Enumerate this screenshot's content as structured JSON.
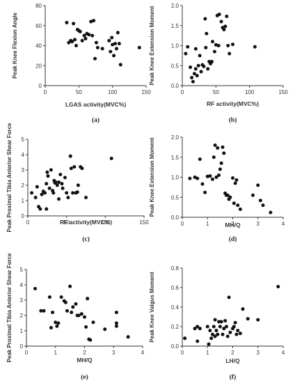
{
  "chart_data": [
    {
      "type": "scatter",
      "panel_label": "(a)",
      "xlabel": "LGAS activity(MVC%)",
      "ylabel": "Peak Knee Flexion Angle",
      "xlim": [
        0,
        150
      ],
      "ylim": [
        0,
        80
      ],
      "xticks": [
        0,
        50,
        100,
        150
      ],
      "yticks": [
        0,
        20,
        40,
        60,
        80
      ],
      "marker_color": "#111111",
      "points": [
        [
          32,
          63
        ],
        [
          35,
          43
        ],
        [
          38,
          45
        ],
        [
          40,
          44
        ],
        [
          42,
          62
        ],
        [
          44,
          46
        ],
        [
          46,
          40
        ],
        [
          48,
          56
        ],
        [
          50,
          55
        ],
        [
          52,
          54
        ],
        [
          55,
          45
        ],
        [
          58,
          50
        ],
        [
          60,
          47
        ],
        [
          62,
          52
        ],
        [
          65,
          51
        ],
        [
          68,
          64
        ],
        [
          70,
          50
        ],
        [
          72,
          65
        ],
        [
          74,
          27
        ],
        [
          76,
          43
        ],
        [
          78,
          38
        ],
        [
          85,
          37
        ],
        [
          95,
          45
        ],
        [
          97,
          34
        ],
        [
          99,
          48
        ],
        [
          100,
          41
        ],
        [
          102,
          30
        ],
        [
          104,
          42
        ],
        [
          106,
          37
        ],
        [
          108,
          53
        ],
        [
          110,
          42
        ],
        [
          112,
          21
        ],
        [
          140,
          38
        ]
      ]
    },
    {
      "type": "scatter",
      "panel_label": "(b)",
      "xlabel": "RF activity(MVC%)",
      "ylabel": "Peak Knee Extension Moment",
      "xlim": [
        0,
        150
      ],
      "ylim": [
        0,
        2.0
      ],
      "xticks": [
        0,
        50,
        100,
        150
      ],
      "yticks": [
        0.0,
        0.5,
        1.0,
        1.5,
        2.0
      ],
      "marker_color": "#111111",
      "points": [
        [
          5,
          0.8
        ],
        [
          8,
          0.97
        ],
        [
          12,
          0.46
        ],
        [
          14,
          0.2
        ],
        [
          16,
          0.1
        ],
        [
          18,
          0.3
        ],
        [
          20,
          0.42
        ],
        [
          20,
          0.92
        ],
        [
          22,
          0.25
        ],
        [
          24,
          0.5
        ],
        [
          26,
          0.75
        ],
        [
          28,
          0.35
        ],
        [
          30,
          0.52
        ],
        [
          32,
          0.48
        ],
        [
          34,
          1.67
        ],
        [
          35,
          0.95
        ],
        [
          36,
          1.3
        ],
        [
          38,
          0.42
        ],
        [
          40,
          0.6
        ],
        [
          42,
          0.55
        ],
        [
          44,
          0.6
        ],
        [
          45,
          1.1
        ],
        [
          48,
          0.85
        ],
        [
          50,
          1.02
        ],
        [
          52,
          1.75
        ],
        [
          54,
          1.0
        ],
        [
          55,
          1.78
        ],
        [
          58,
          1.6
        ],
        [
          60,
          1.45
        ],
        [
          62,
          1.4
        ],
        [
          64,
          1.48
        ],
        [
          66,
          1.73
        ],
        [
          68,
          1.0
        ],
        [
          70,
          0.8
        ],
        [
          75,
          1.03
        ],
        [
          108,
          0.97
        ]
      ]
    },
    {
      "type": "scatter",
      "panel_label": "(c)",
      "xlabel": "RF activity(MVC%)",
      "ylabel": "Peak Proximal Tibia Anterior Shear Force",
      "xlim": [
        0,
        150
      ],
      "ylim": [
        0,
        5
      ],
      "xticks": [
        0,
        50,
        100,
        150
      ],
      "yticks": [
        0,
        1,
        2,
        3,
        4,
        5
      ],
      "marker_color": "#111111",
      "points": [
        [
          5,
          1.5
        ],
        [
          10,
          1.2
        ],
        [
          12,
          1.9
        ],
        [
          14,
          0.6
        ],
        [
          16,
          0.45
        ],
        [
          18,
          1.4
        ],
        [
          20,
          1.6
        ],
        [
          22,
          1.5
        ],
        [
          24,
          0.45
        ],
        [
          24,
          2.1
        ],
        [
          25,
          2.85
        ],
        [
          26,
          2.6
        ],
        [
          28,
          1.8
        ],
        [
          30,
          3.0
        ],
        [
          32,
          1.65
        ],
        [
          33,
          1.5
        ],
        [
          34,
          2.3
        ],
        [
          35,
          2.15
        ],
        [
          36,
          2.2
        ],
        [
          38,
          2.0
        ],
        [
          40,
          1.1
        ],
        [
          40,
          2.2
        ],
        [
          42,
          2.7
        ],
        [
          44,
          2.1
        ],
        [
          45,
          1.8
        ],
        [
          48,
          2.5
        ],
        [
          50,
          1.5
        ],
        [
          52,
          1.2
        ],
        [
          55,
          3.9
        ],
        [
          56,
          3.1
        ],
        [
          58,
          1.5
        ],
        [
          60,
          3.2
        ],
        [
          62,
          1.5
        ],
        [
          64,
          1.55
        ],
        [
          65,
          2.0
        ],
        [
          68,
          3.2
        ],
        [
          70,
          3.1
        ],
        [
          75,
          1.2
        ],
        [
          108,
          3.75
        ]
      ]
    },
    {
      "type": "scatter",
      "panel_label": "(d)",
      "xlabel": "MH/Q",
      "ylabel": "Peak Knee Extension Moment",
      "xlim": [
        0,
        4
      ],
      "ylim": [
        0,
        2.0
      ],
      "xticks": [
        0,
        1,
        2,
        3,
        4
      ],
      "yticks": [
        0.0,
        0.5,
        1.0,
        1.5,
        2.0
      ],
      "marker_color": "#111111",
      "points": [
        [
          0.3,
          0.97
        ],
        [
          0.5,
          1.0
        ],
        [
          0.6,
          0.97
        ],
        [
          0.7,
          1.45
        ],
        [
          0.8,
          0.83
        ],
        [
          0.9,
          0.62
        ],
        [
          1.0,
          1.02
        ],
        [
          1.1,
          1.03
        ],
        [
          1.2,
          0.95
        ],
        [
          1.25,
          1.5
        ],
        [
          1.3,
          1.8
        ],
        [
          1.35,
          1.0
        ],
        [
          1.4,
          1.73
        ],
        [
          1.45,
          1.05
        ],
        [
          1.5,
          1.2
        ],
        [
          1.55,
          1.35
        ],
        [
          1.6,
          1.75
        ],
        [
          1.65,
          1.6
        ],
        [
          1.7,
          0.6
        ],
        [
          1.75,
          0.55
        ],
        [
          1.8,
          0.55
        ],
        [
          1.85,
          0.45
        ],
        [
          1.9,
          0.5
        ],
        [
          2.0,
          0.98
        ],
        [
          2.05,
          0.35
        ],
        [
          2.1,
          0.85
        ],
        [
          2.15,
          0.93
        ],
        [
          2.2,
          0.3
        ],
        [
          2.3,
          0.2
        ],
        [
          2.8,
          0.55
        ],
        [
          3.0,
          0.8
        ],
        [
          3.1,
          0.42
        ],
        [
          3.2,
          0.3
        ],
        [
          3.5,
          0.12
        ]
      ]
    },
    {
      "type": "scatter",
      "panel_label": "(e)",
      "xlabel": "MH/Q",
      "ylabel": "Peak Proximal Tibia Anterior Shear Force",
      "xlim": [
        0,
        4
      ],
      "ylim": [
        0,
        5
      ],
      "xticks": [
        0,
        1,
        2,
        3,
        4
      ],
      "yticks": [
        0,
        1,
        2,
        3,
        4,
        5
      ],
      "marker_color": "#111111",
      "points": [
        [
          0.3,
          3.75
        ],
        [
          0.5,
          2.3
        ],
        [
          0.6,
          2.3
        ],
        [
          0.8,
          3.2
        ],
        [
          0.85,
          1.2
        ],
        [
          0.9,
          2.2
        ],
        [
          1.0,
          1.55
        ],
        [
          1.05,
          1.3
        ],
        [
          1.1,
          1.5
        ],
        [
          1.2,
          3.2
        ],
        [
          1.3,
          2.95
        ],
        [
          1.35,
          2.85
        ],
        [
          1.4,
          2.3
        ],
        [
          1.5,
          3.9
        ],
        [
          1.55,
          2.2
        ],
        [
          1.6,
          2.55
        ],
        [
          1.7,
          2.75
        ],
        [
          1.75,
          2.0
        ],
        [
          1.8,
          2.0
        ],
        [
          1.9,
          2.1
        ],
        [
          2.0,
          1.9
        ],
        [
          2.05,
          1.25
        ],
        [
          2.1,
          3.1
        ],
        [
          2.15,
          0.45
        ],
        [
          2.2,
          0.4
        ],
        [
          2.3,
          1.55
        ],
        [
          2.7,
          1.1
        ],
        [
          3.1,
          1.5
        ],
        [
          3.1,
          1.3
        ],
        [
          3.1,
          2.2
        ],
        [
          3.5,
          0.6
        ]
      ]
    },
    {
      "type": "scatter",
      "panel_label": "(f)",
      "xlabel": "LH/Q",
      "ylabel": "Peak Knee Valgus Moment",
      "xlim": [
        0,
        4
      ],
      "ylim": [
        0,
        0.8
      ],
      "xticks": [
        0,
        1,
        2,
        3,
        4
      ],
      "yticks": [
        0.0,
        0.2,
        0.4,
        0.6,
        0.8
      ],
      "marker_color": "#111111",
      "points": [
        [
          0.1,
          0.08
        ],
        [
          0.5,
          0.18
        ],
        [
          0.6,
          0.2
        ],
        [
          0.6,
          0.05
        ],
        [
          0.7,
          0.18
        ],
        [
          1.0,
          0.2
        ],
        [
          1.05,
          0.02
        ],
        [
          1.1,
          0.16
        ],
        [
          1.15,
          0.08
        ],
        [
          1.2,
          0.12
        ],
        [
          1.25,
          0.2
        ],
        [
          1.3,
          0.27
        ],
        [
          1.3,
          0.1
        ],
        [
          1.35,
          0.16
        ],
        [
          1.4,
          0.12
        ],
        [
          1.45,
          0.25
        ],
        [
          1.5,
          0.2
        ],
        [
          1.55,
          0.25
        ],
        [
          1.6,
          0.12
        ],
        [
          1.65,
          0.18
        ],
        [
          1.7,
          0.26
        ],
        [
          1.75,
          0.2
        ],
        [
          1.8,
          0.1
        ],
        [
          1.85,
          0.5
        ],
        [
          1.9,
          0.14
        ],
        [
          2.0,
          0.18
        ],
        [
          2.05,
          0.2
        ],
        [
          2.1,
          0.24
        ],
        [
          2.15,
          0.12
        ],
        [
          2.2,
          0.16
        ],
        [
          2.3,
          0.13
        ],
        [
          2.4,
          0.38
        ],
        [
          2.6,
          0.28
        ],
        [
          3.0,
          0.27
        ],
        [
          3.8,
          0.61
        ]
      ]
    }
  ]
}
